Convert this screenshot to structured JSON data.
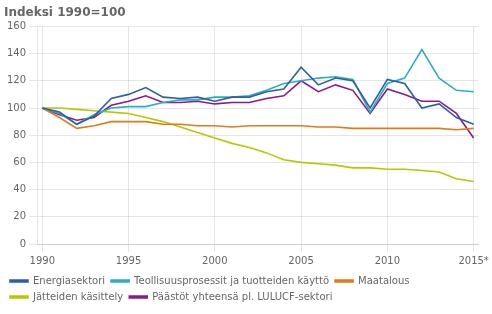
{
  "chart_data": {
    "type": "line",
    "title": "Indeksi 1990=100",
    "x": [
      1990,
      1991,
      1992,
      1993,
      1994,
      1995,
      1996,
      1997,
      1998,
      1999,
      2000,
      2001,
      2002,
      2003,
      2004,
      2005,
      2006,
      2007,
      2008,
      2009,
      2010,
      2011,
      2012,
      2013,
      2014,
      2015
    ],
    "series": [
      {
        "name": "Energiasektori",
        "color": "#2e5fa3",
        "values": [
          100,
          97,
          88,
          94,
          107,
          110,
          115,
          108,
          107,
          108,
          105,
          108,
          108,
          112,
          114,
          130,
          117,
          122,
          120,
          100,
          121,
          118,
          100,
          103,
          93,
          88
        ]
      },
      {
        "name": "Teollisuusprosessit ja tuotteiden käyttö",
        "color": "#2ab0c0",
        "values": [
          100,
          96,
          88,
          95,
          100,
          101,
          101,
          104,
          106,
          106,
          108,
          108,
          109,
          113,
          118,
          120,
          122,
          123,
          121,
          97,
          118,
          122,
          143,
          122,
          113,
          112
        ]
      },
      {
        "name": "Maatalous",
        "color": "#e07b1a",
        "values": [
          100,
          93,
          85,
          87,
          90,
          90,
          90,
          88,
          88,
          87,
          87,
          86,
          87,
          87,
          87,
          87,
          86,
          86,
          85,
          85,
          85,
          85,
          85,
          85,
          84,
          85
        ]
      },
      {
        "name": "Jätteiden käsittely",
        "color": "#b5c900",
        "values": [
          100,
          100,
          99,
          98,
          97,
          96,
          93,
          90,
          86,
          82,
          78,
          74,
          71,
          67,
          62,
          60,
          59,
          58,
          56,
          56,
          55,
          55,
          54,
          53,
          48,
          46
        ]
      },
      {
        "name": "Päästöt yhteensä pl. LULUCF-sektori",
        "color": "#8b1a8b",
        "values": [
          100,
          95,
          91,
          93,
          102,
          105,
          109,
          104,
          104,
          105,
          103,
          104,
          104,
          107,
          109,
          120,
          112,
          117,
          113,
          96,
          114,
          110,
          105,
          105,
          96,
          78
        ]
      }
    ],
    "xlim": [
      1989.7,
      2015.3
    ],
    "xticks": [
      1990,
      1995,
      2000,
      2005,
      2010,
      {
        "value": 2015,
        "label": "2015*"
      }
    ],
    "ylim": [
      0,
      160
    ],
    "yticks": [
      0,
      20,
      40,
      60,
      80,
      100,
      120,
      140,
      160
    ],
    "grid": true,
    "legend": "bottom",
    "marker": "none",
    "line_style": "solid"
  }
}
